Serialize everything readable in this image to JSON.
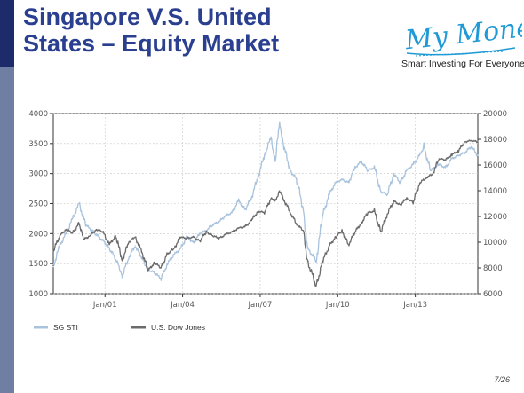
{
  "slide": {
    "title_line1": "Singapore V.S. United",
    "title_line2": "States – Equity Market",
    "page": "7/26"
  },
  "logo": {
    "name": "My Money",
    "tagline": "Smart Investing For Everyone.",
    "color": "#1f9ad6"
  },
  "colors": {
    "sidebar": "#6e7fa3",
    "sidebar_top": "#1e2b6b",
    "title": "#2a3f8f"
  },
  "chart_data": {
    "type": "line",
    "title": "",
    "x_ticks": [
      "Jan/01",
      "Jan/04",
      "Jan/07",
      "Jan/10",
      "Jan/13"
    ],
    "x_range": [
      "1999-01",
      "2015-06"
    ],
    "y_left": {
      "range": [
        1000,
        4000
      ],
      "ticks": [
        1000,
        1500,
        2000,
        2500,
        3000,
        3500,
        4000
      ]
    },
    "y_right": {
      "range": [
        6000,
        20000
      ],
      "ticks": [
        6000,
        8000,
        10000,
        12000,
        14000,
        16000,
        18000,
        20000
      ]
    },
    "grid": true,
    "legend_position": "bottom-left",
    "series": [
      {
        "name": "SG STI",
        "axis": "left",
        "color": "#a9c3dd",
        "points": [
          [
            "1999-01",
            1450
          ],
          [
            "1999-04",
            1800
          ],
          [
            "1999-07",
            2000
          ],
          [
            "1999-10",
            2250
          ],
          [
            "2000-01",
            2500
          ],
          [
            "2000-04",
            2150
          ],
          [
            "2000-07",
            2050
          ],
          [
            "2000-10",
            1950
          ],
          [
            "2001-01",
            1850
          ],
          [
            "2001-04",
            1700
          ],
          [
            "2001-07",
            1500
          ],
          [
            "2001-09",
            1300
          ],
          [
            "2001-12",
            1600
          ],
          [
            "2002-03",
            1800
          ],
          [
            "2002-06",
            1600
          ],
          [
            "2002-09",
            1400
          ],
          [
            "2002-12",
            1350
          ],
          [
            "2003-03",
            1250
          ],
          [
            "2003-06",
            1500
          ],
          [
            "2003-09",
            1650
          ],
          [
            "2003-12",
            1750
          ],
          [
            "2004-03",
            1950
          ],
          [
            "2004-06",
            1850
          ],
          [
            "2004-09",
            2000
          ],
          [
            "2004-12",
            2050
          ],
          [
            "2005-03",
            2150
          ],
          [
            "2005-06",
            2200
          ],
          [
            "2005-09",
            2300
          ],
          [
            "2005-12",
            2350
          ],
          [
            "2006-03",
            2550
          ],
          [
            "2006-06",
            2400
          ],
          [
            "2006-09",
            2600
          ],
          [
            "2006-12",
            2950
          ],
          [
            "2007-03",
            3300
          ],
          [
            "2007-06",
            3600
          ],
          [
            "2007-08",
            3200
          ],
          [
            "2007-10",
            3850
          ],
          [
            "2007-12",
            3450
          ],
          [
            "2008-03",
            3050
          ],
          [
            "2008-06",
            2900
          ],
          [
            "2008-09",
            2400
          ],
          [
            "2008-11",
            1750
          ],
          [
            "2009-03",
            1550
          ],
          [
            "2009-06",
            2300
          ],
          [
            "2009-09",
            2650
          ],
          [
            "2009-12",
            2850
          ],
          [
            "2010-03",
            2900
          ],
          [
            "2010-06",
            2850
          ],
          [
            "2010-09",
            3100
          ],
          [
            "2010-12",
            3200
          ],
          [
            "2011-03",
            3050
          ],
          [
            "2011-06",
            3100
          ],
          [
            "2011-09",
            2700
          ],
          [
            "2011-12",
            2650
          ],
          [
            "2012-03",
            3000
          ],
          [
            "2012-06",
            2850
          ],
          [
            "2012-09",
            3050
          ],
          [
            "2012-12",
            3150
          ],
          [
            "2013-03",
            3300
          ],
          [
            "2013-05",
            3450
          ],
          [
            "2013-08",
            3050
          ],
          [
            "2013-12",
            3150
          ],
          [
            "2014-03",
            3100
          ],
          [
            "2014-06",
            3250
          ],
          [
            "2014-09",
            3300
          ],
          [
            "2014-12",
            3350
          ],
          [
            "2015-03",
            3450
          ],
          [
            "2015-06",
            3300
          ]
        ]
      },
      {
        "name": "U.S. Dow Jones",
        "axis": "right",
        "color": "#6b6b6b",
        "points": [
          [
            "1999-01",
            9300
          ],
          [
            "1999-04",
            10500
          ],
          [
            "1999-07",
            11000
          ],
          [
            "1999-10",
            10700
          ],
          [
            "2000-01",
            11500
          ],
          [
            "2000-03",
            10200
          ],
          [
            "2000-06",
            10500
          ],
          [
            "2000-09",
            11000
          ],
          [
            "2000-12",
            10800
          ],
          [
            "2001-03",
            9800
          ],
          [
            "2001-06",
            10500
          ],
          [
            "2001-09",
            8600
          ],
          [
            "2001-12",
            10000
          ],
          [
            "2002-03",
            10400
          ],
          [
            "2002-06",
            9300
          ],
          [
            "2002-09",
            7800
          ],
          [
            "2002-12",
            8400
          ],
          [
            "2003-03",
            8000
          ],
          [
            "2003-06",
            9100
          ],
          [
            "2003-09",
            9500
          ],
          [
            "2003-12",
            10400
          ],
          [
            "2004-03",
            10300
          ],
          [
            "2004-06",
            10400
          ],
          [
            "2004-09",
            10100
          ],
          [
            "2004-12",
            10800
          ],
          [
            "2005-03",
            10500
          ],
          [
            "2005-06",
            10300
          ],
          [
            "2005-09",
            10600
          ],
          [
            "2005-12",
            10800
          ],
          [
            "2006-03",
            11100
          ],
          [
            "2006-06",
            11200
          ],
          [
            "2006-09",
            11700
          ],
          [
            "2006-12",
            12400
          ],
          [
            "2007-03",
            12300
          ],
          [
            "2007-06",
            13400
          ],
          [
            "2007-08",
            13200
          ],
          [
            "2007-10",
            14000
          ],
          [
            "2007-12",
            13300
          ],
          [
            "2008-03",
            12300
          ],
          [
            "2008-06",
            11400
          ],
          [
            "2008-09",
            10900
          ],
          [
            "2008-11",
            8500
          ],
          [
            "2009-03",
            6600
          ],
          [
            "2009-06",
            8500
          ],
          [
            "2009-09",
            9700
          ],
          [
            "2009-12",
            10400
          ],
          [
            "2010-03",
            10900
          ],
          [
            "2010-06",
            9800
          ],
          [
            "2010-09",
            10800
          ],
          [
            "2010-12",
            11500
          ],
          [
            "2011-03",
            12300
          ],
          [
            "2011-06",
            12400
          ],
          [
            "2011-09",
            10800
          ],
          [
            "2011-12",
            12200
          ],
          [
            "2012-03",
            13200
          ],
          [
            "2012-06",
            12900
          ],
          [
            "2012-09",
            13400
          ],
          [
            "2012-12",
            13100
          ],
          [
            "2013-03",
            14600
          ],
          [
            "2013-06",
            15000
          ],
          [
            "2013-09",
            15300
          ],
          [
            "2013-12",
            16500
          ],
          [
            "2014-03",
            16400
          ],
          [
            "2014-06",
            16800
          ],
          [
            "2014-09",
            17100
          ],
          [
            "2014-12",
            17800
          ],
          [
            "2015-03",
            17900
          ],
          [
            "2015-06",
            17800
          ]
        ]
      }
    ]
  }
}
